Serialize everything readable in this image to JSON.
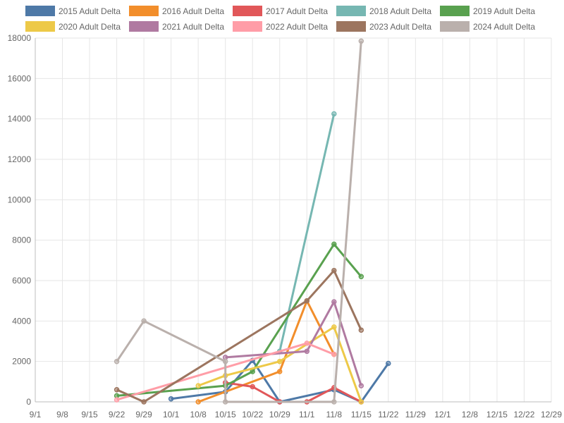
{
  "chart_data": {
    "type": "line",
    "x_axis": {
      "type": "date",
      "ticks": [
        "9/1",
        "9/8",
        "9/15",
        "9/22",
        "9/29",
        "10/1",
        "10/8",
        "10/15",
        "10/22",
        "10/29",
        "11/1",
        "11/8",
        "11/15",
        "11/22",
        "11/29",
        "12/1",
        "12/8",
        "12/15",
        "12/22",
        "12/29"
      ]
    },
    "ylim": [
      0,
      18000
    ],
    "y_ticks": [
      0,
      2000,
      4000,
      6000,
      8000,
      10000,
      12000,
      14000,
      16000,
      18000
    ],
    "grid": true,
    "legend_position": "top",
    "series": [
      {
        "name": "2015 Adult Delta",
        "color": "#4e79a7",
        "points": [
          [
            "10/1",
            150
          ],
          [
            "10/15",
            500
          ],
          [
            "10/22",
            2050
          ],
          [
            "10/29",
            0
          ],
          [
            "11/8",
            600
          ],
          [
            "11/15",
            0
          ],
          [
            "11/22",
            1900
          ]
        ]
      },
      {
        "name": "2016 Adult Delta",
        "color": "#f28e2b",
        "points": [
          [
            "10/8",
            0
          ],
          [
            "10/29",
            1500
          ],
          [
            "11/1",
            5000
          ],
          [
            "11/8",
            2350
          ]
        ]
      },
      {
        "name": "2017 Adult Delta",
        "color": "#e15759",
        "points": [
          [
            "10/15",
            950
          ],
          [
            "10/22",
            750
          ],
          [
            "10/29",
            0
          ],
          [
            "11/1",
            0
          ],
          [
            "11/8",
            700
          ],
          [
            "11/15",
            0
          ]
        ]
      },
      {
        "name": "2018 Adult Delta",
        "color": "#76b7b2",
        "points": [
          [
            "10/29",
            2500
          ],
          [
            "11/8",
            14250
          ]
        ]
      },
      {
        "name": "2019 Adult Delta",
        "color": "#59a14f",
        "points": [
          [
            "9/22",
            300
          ],
          [
            "10/15",
            800
          ],
          [
            "10/22",
            1500
          ],
          [
            "11/8",
            7800
          ],
          [
            "11/15",
            6200
          ]
        ]
      },
      {
        "name": "2020 Adult Delta",
        "color": "#edc948",
        "points": [
          [
            "10/8",
            800
          ],
          [
            "10/15",
            1300
          ],
          [
            "10/29",
            2000
          ],
          [
            "11/8",
            3700
          ],
          [
            "11/15",
            0
          ]
        ]
      },
      {
        "name": "2021 Adult Delta",
        "color": "#b07aa1",
        "points": [
          [
            "10/15",
            2200
          ],
          [
            "11/1",
            2500
          ],
          [
            "11/8",
            4950
          ],
          [
            "11/15",
            800
          ]
        ]
      },
      {
        "name": "2022 Adult Delta",
        "color": "#ff9da7",
        "points": [
          [
            "9/22",
            100
          ],
          [
            "11/1",
            2900
          ],
          [
            "11/8",
            2350
          ]
        ]
      },
      {
        "name": "2023 Adult Delta",
        "color": "#9c755f",
        "points": [
          [
            "9/22",
            600
          ],
          [
            "9/29",
            0
          ],
          [
            "11/1",
            5000
          ],
          [
            "11/8",
            6500
          ],
          [
            "11/15",
            3550
          ]
        ]
      },
      {
        "name": "2024 Adult Delta",
        "color": "#bab0ac",
        "points": [
          [
            "9/22",
            2000
          ],
          [
            "9/29",
            4000
          ],
          [
            "10/15",
            2000
          ],
          [
            "10/15",
            0
          ],
          [
            "11/8",
            0
          ],
          [
            "11/15",
            17850
          ]
        ]
      }
    ]
  }
}
